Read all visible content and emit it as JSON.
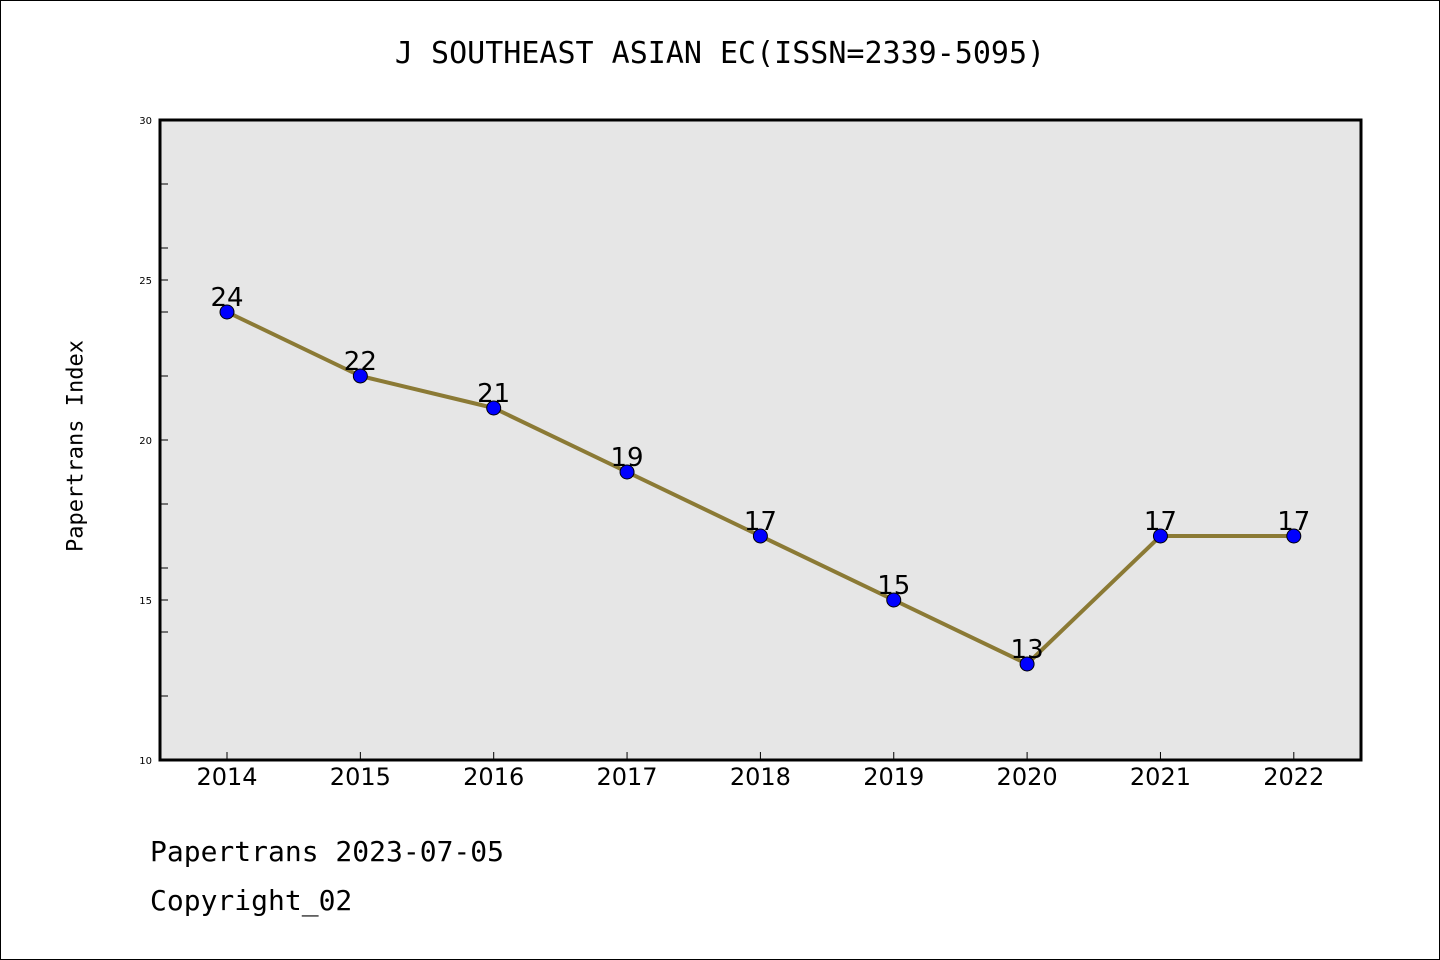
{
  "chart_data": {
    "type": "line",
    "title": "J SOUTHEAST ASIAN EC(ISSN=2339-5095)",
    "ylabel": "Papertrans Index",
    "xlabel": "",
    "categories": [
      "2014",
      "2015",
      "2016",
      "2017",
      "2018",
      "2019",
      "2020",
      "2021",
      "2022"
    ],
    "series": [
      {
        "values": [
          24,
          22,
          21,
          19,
          17,
          15,
          13,
          17,
          17
        ]
      }
    ],
    "data_labels": [
      "24",
      "22",
      "21",
      "19",
      "17",
      "15",
      "13",
      "17",
      "17"
    ],
    "ylim": [
      10,
      30
    ],
    "yticks": [
      10,
      15,
      20,
      25,
      30
    ],
    "ytick_labels": [
      "10",
      "15",
      "20",
      "25",
      "30"
    ],
    "grid": false,
    "colors": {
      "line": "#8b7a35",
      "marker": "#0000ff",
      "plot_background": "#e6e6e6"
    }
  },
  "footer": {
    "date_text": "Papertrans 2023-07-05",
    "copyright_text": "Copyright_02"
  }
}
